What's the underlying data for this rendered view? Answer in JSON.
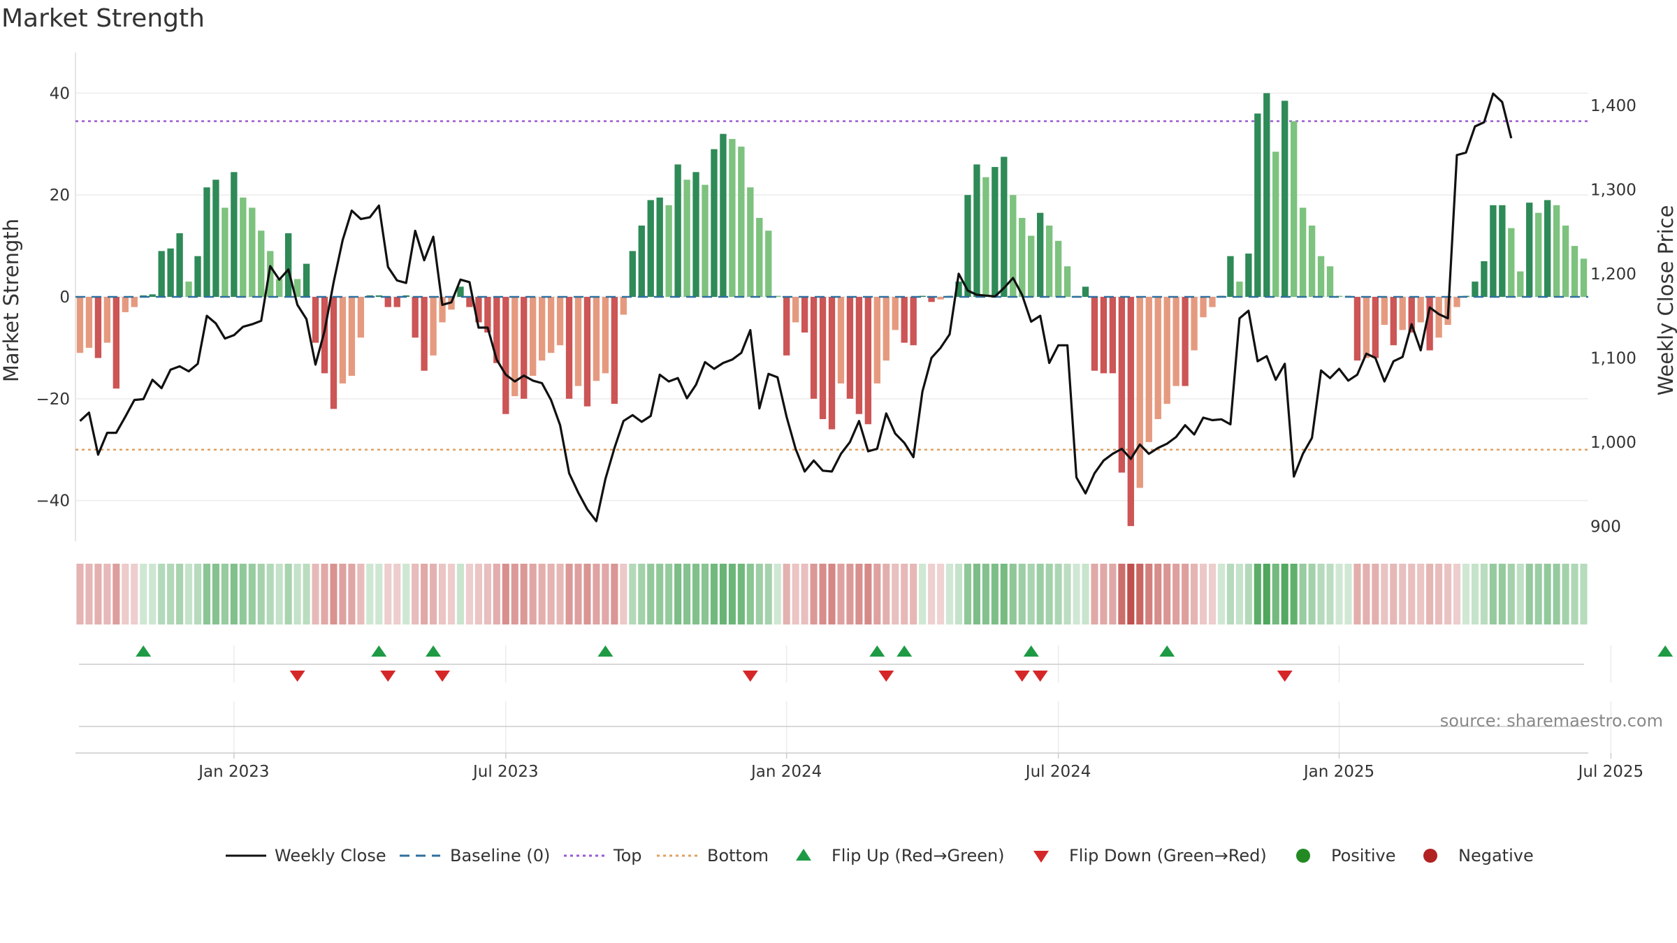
{
  "chart_data": {
    "type": "bar",
    "title": "Market Strength",
    "source": "source: sharemaestro.com",
    "ylabel_left": "Market Strength",
    "ylabel_right": "Weekly Close Price",
    "left_axis": {
      "ylim": [
        -48,
        48
      ],
      "ticks": [
        -40,
        -20,
        0,
        20,
        40
      ],
      "tick_labels": [
        "−40",
        "−20",
        "0",
        "20",
        "40"
      ]
    },
    "right_axis": {
      "ylim": [
        882,
        1463
      ],
      "ticks": [
        900,
        1000,
        1100,
        1200,
        1300,
        1400
      ],
      "tick_labels": [
        "900",
        "1,000",
        "1,100",
        "1,200",
        "1,300",
        "1,400"
      ]
    },
    "x_axis": {
      "start_week_offset": 0,
      "tick_weeks": [
        17,
        47,
        78,
        108,
        139,
        169
      ],
      "tick_labels": [
        "Jan 2023",
        "Jul 2023",
        "Jan 2024",
        "Jul 2024",
        "Jan 2025",
        "Jul 2025"
      ]
    },
    "reference_lines": {
      "baseline": 0,
      "top": 34.5,
      "bottom": -30
    },
    "strength": [
      -11,
      -10,
      -12,
      -9,
      -18,
      -3,
      -2,
      0.3,
      0.5,
      9,
      9.5,
      12.5,
      3,
      8,
      21.5,
      23,
      17.5,
      24.5,
      19.5,
      17.5,
      13,
      9,
      3.5,
      12.5,
      3.5,
      6.5,
      -9,
      -15,
      -22,
      -17,
      -15.5,
      -8,
      0.3,
      0.3,
      -2,
      -2,
      0.3,
      -8,
      -14.5,
      -11.5,
      -5,
      -2.5,
      2,
      -2,
      -5,
      -7,
      -13,
      -23,
      -19.5,
      -20,
      -15.5,
      -12.5,
      -11,
      -9.5,
      -20,
      -17.5,
      -21.5,
      -16.5,
      -15,
      -21,
      -3.5,
      9,
      14,
      19,
      19.5,
      18,
      26,
      23,
      24.5,
      22,
      29,
      32,
      31,
      29.5,
      21.5,
      15.5,
      13,
      0,
      -11.5,
      -5,
      -7,
      -20,
      -24,
      -26,
      -17,
      -20,
      -23,
      -25,
      -17,
      -12.5,
      -6.5,
      -9,
      -9.5,
      0,
      -1,
      -0.5,
      0,
      3,
      20,
      26,
      23.5,
      25.5,
      27.5,
      20,
      15.5,
      12,
      16.5,
      14,
      11,
      6,
      0,
      2,
      -14.5,
      -15,
      -15,
      -34.5,
      -45,
      -37.5,
      -28.5,
      -24,
      -21,
      -17.5,
      -17.5,
      -10.5,
      -4,
      -2,
      0,
      8,
      3,
      8.5,
      36,
      40,
      28.5,
      38.5,
      34.5,
      17.5,
      14,
      8,
      6,
      0,
      0,
      -12.5,
      -12,
      -12,
      -5.5,
      -9.5,
      -6.5,
      -7,
      -5,
      -10.5,
      -8,
      -5.5,
      -2,
      0,
      3,
      7,
      18,
      18,
      13.5,
      5,
      18.5,
      16.5,
      19,
      18,
      14,
      10,
      7.5
    ],
    "close": [
      1025,
      1035,
      985,
      1011,
      1011,
      1030,
      1050,
      1051,
      1074,
      1064,
      1086,
      1090,
      1084,
      1093,
      1150,
      1141,
      1123,
      1127,
      1137,
      1140,
      1144,
      1209,
      1193,
      1205,
      1163,
      1146,
      1092,
      1132,
      1190,
      1240,
      1275,
      1265,
      1267,
      1281,
      1208,
      1192,
      1189,
      1251,
      1216,
      1244,
      1163,
      1166,
      1193,
      1190,
      1136,
      1136,
      1098,
      1080,
      1072,
      1079,
      1073,
      1070,
      1050,
      1020,
      963,
      940,
      920,
      906,
      956,
      993,
      1025,
      1032,
      1024,
      1031,
      1080,
      1072,
      1076,
      1052,
      1068,
      1095,
      1087,
      1094,
      1098,
      1106,
      1133,
      1040,
      1081,
      1077,
      1030,
      992,
      965,
      978,
      966,
      965,
      986,
      1000,
      1025,
      989,
      992,
      1034,
      1010,
      999,
      982,
      1060,
      1100,
      1112,
      1128,
      1200,
      1180,
      1175,
      1174,
      1173,
      1183,
      1195,
      1175,
      1143,
      1150,
      1094,
      1115,
      1115,
      958,
      939,
      963,
      978,
      986,
      992,
      980,
      997,
      986,
      993,
      998,
      1006,
      1020,
      1009,
      1029,
      1026,
      1027,
      1021,
      1147,
      1156,
      1096,
      1102,
      1074,
      1093,
      959,
      986,
      1005,
      1085,
      1076,
      1087,
      1073,
      1080,
      1105,
      1100,
      1072,
      1096,
      1101,
      1140,
      1109,
      1160,
      1152,
      1147,
      1341,
      1344,
      1375,
      1380,
      1414,
      1404,
      1361
    ],
    "flip_up_weeks": [
      7,
      33,
      39,
      58,
      88,
      91,
      105,
      120,
      175
    ],
    "flip_down_weeks": [
      24,
      34,
      40,
      74,
      89,
      104,
      106,
      133
    ],
    "legend": [
      "Weekly Close",
      "Baseline (0)",
      "Top",
      "Bottom",
      "Flip Up (Red→Green)",
      "Flip Down (Green→Red)",
      "Positive",
      "Negative"
    ]
  },
  "colors": {
    "pos_strong": "#2e8a57",
    "pos_light": "#7dc27e",
    "neg_strong": "#cc5555",
    "neg_light": "#e59a7f",
    "price_line": "#111111",
    "baseline": "#2f6f9f",
    "top": "#9b59d0",
    "bottom": "#e0a060",
    "flip_up": "#1e9a45",
    "flip_down": "#d62728",
    "legend_positive": "#238a23",
    "legend_negative": "#b22222"
  }
}
